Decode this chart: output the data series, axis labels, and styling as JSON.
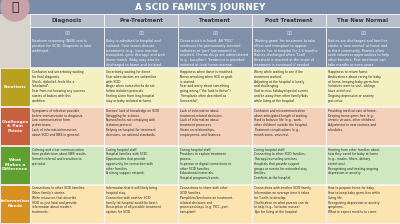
{
  "title": "A SCID FAMILY'S JOURNEY",
  "title_bg": "#7b8ca8",
  "title_color": "#ffffff",
  "columns": [
    "Diagnosis",
    "Pre-Treatment",
    "Treatment",
    "Post Treatment",
    "The New Normal"
  ],
  "col_header_bg": "#b8bfcc",
  "col_header_color": "#333333",
  "row_labels": [
    "Emotions",
    "Challenges\n& Pain\nPoints",
    "What\nMakes a\nDifference",
    "Information\nNeeds"
  ],
  "row_colors": [
    "#f5f0c0",
    "#f5d0b8",
    "#d0e8c0",
    "#fce4b0"
  ],
  "row_label_colors": [
    "#b8a020",
    "#c86040",
    "#60a030",
    "#d89020"
  ],
  "desc_bg": "#8090a8",
  "desc_color": "#ffffff",
  "fig_bg": "#d8d4cc",
  "circle_color": "#c8a0a8",
  "emotions_data": [
    [
      "Confusion and uncertainty waiting\nfor final diagnosis.\nShock, disbelief, feels like a\n\"whirlwind\".\nFear from not knowing any success\nstories of babies with this\ncondition.",
      "Uncertainty waiting for donor.\nFear when doctors are unfamiliar\nwith SCID.\nAnger when nurses/techs do not\nfollow isolation protocols.\nFeeling alone from long hospital\nstay or baby isolated at home.",
      "Happiness when donor is matched.\nNerve-wracking when HCE or graft\nis started.\nFear and worry about something\ngoing wrong (\"the funk to thrive\").\nTransplants often described as\n\"uneventful\".",
      "Worry while waiting to see if the\ntreatment worked.\nAdjusting at the hospital is lonely\nand challenging.\nSad to miss holidays/special events\nand be away from other family/kids\nwhile living at the hospital.",
      "Happiness to return home.\nAmbivalence about caring for baby\nat home, keeping baby germ-free\n(relatives want to visit, siblings\nhave activities).\nOngoing depression or anxiety\npost-crisis."
    ],
    [
      "Symptoms of infection possible\nbefore immunization to diagnosis.\nLow communication from\npediatricians.\nLack of information/resources\nabout SCID and NBS in general.",
      "Doctors' lack of knowledge on SCID\nStruggling for a donor.\nNurses/techs not complying with\nisolation protocol.\nRelying on hospital for treatment\ndecisions, no national standards.",
      "Lack of information about\ntreatment-related decisions.\nLack of information about\ntreatment processes.\nStrain on relationships,\nemployment, and finances.",
      "Confusion and miscommunication\nabout anticipated length of waiting.\nHard to balance life (e.g., work,\nother children) outside the hospital.\nTreatment complications (e.g.,\nmouth sores, seizures).",
      "Providing medical care at home.\nKeeping home germ-free (e.g.,\nchronic viruses, other children).\nAdjustment to new routines and\nschedules."
    ],
    [
      "Calming and clear communication\nfrom pediatrician about NBS results.\nSmooth referral and transition to\nspecialist.",
      "Caring hospital staff.\nHospital families with SCID.\nOpportunities that provide\nopportunity for connection with\nother families.\nA strong support network.",
      "Caring hospital staff.\nProviders to explain treatment\nprocess.\nIn-person or digital connections to\nother SCID families.\nEducational materials.\nHospital programs/events.",
      "Caring hospital staff.\nConnecting to other SCID families.\nTherapy/counseling services.\nHospitals that provide support\ngroups or events for extended stay\nfamilies.\nComforts at the hospital.",
      "Hearing from other families about\nhow they cared for baby at home\n(e.g., masks, filters, dietary\nrestrictions).\nRecognizing and treating ongoing\ndepression or anxiety."
    ],
    [
      "Connections to other SCID families.\nOther family's stories.\nWrite resources that describe\nSCID as just fatal and provide\ninformation about modern\ntreatments.",
      "Information that it will likely bring\nhospital stay.\nConnection with another SCID\nfamily (at hospital would be best).\nDescription of all possible treatment\noptions for SCID.",
      "Connections to share with other\nSCID families.\nPamphlets/brochures on treatment-\nrelated decisions and\nprocesses/steps (e.g. PICC, port,\ntransplant).",
      "Connections with another SCID family.\nInformation on average time it takes\nfor T-cells to develop.\nClarification on what parents can do\nto help (e.g., lactation nurses).\nTips for living at the hospital.",
      "How to prepare home for baby.\nHow to keep baby germ-free while\nliving life.\nRecognizing depression or anxiety\nsymptoms.\nWhat to expect months to come."
    ]
  ],
  "desc_texts": [
    "Newborn screening (NBS) test is\npositive for SCID. Diagnosis is later\nconfirmed.",
    "Baby is admitted to hospital and\nisolated. Care teams discuss\ntreatments (e.g., bone marrow\ntransplant, gene therapy) and wait\ndonor match. Baby may also be\ndischarged to home and isolated.",
    "Donor match is found. All 'PICC'\ncontinues the permanently inserted\ncatheters or 'port' (permanent) is\ninserted. Chemo drugs are administered\n(e.g., busulfan). Treatment is provided\ninitiated at local home marrow.",
    "'Waiting game' for treatment to take\neffect and transplant to appear.\nBabies live in hospital for 2-6 months.\nBabies discharged when T-cell\nthreshold is reached at the onset of\ntreatment is continued if needed.",
    "Babies are discharged and families\ncreate a 'new normal' at home and\nin their community. Parents often\nseek volunteer opportunities to help\nother families. Post treatment can\ntake months or even years."
  ]
}
